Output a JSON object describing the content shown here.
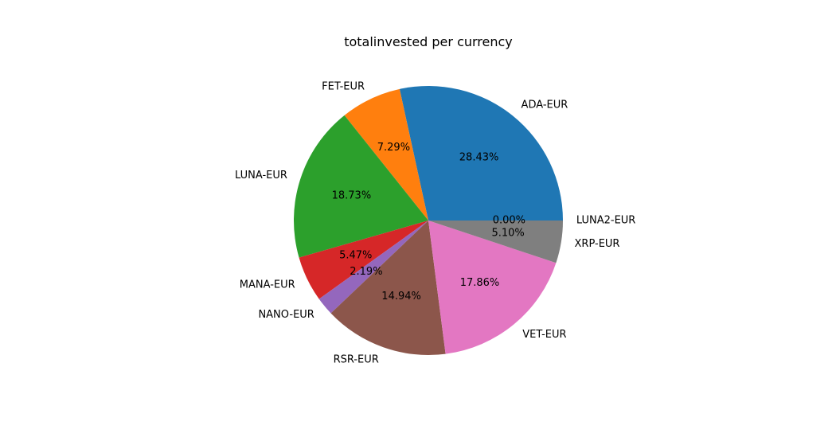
{
  "chart_data": {
    "type": "pie",
    "title": "totalinvested per currency",
    "categories": [
      "ADA-EUR",
      "FET-EUR",
      "LUNA-EUR",
      "MANA-EUR",
      "NANO-EUR",
      "RSR-EUR",
      "VET-EUR",
      "XRP-EUR",
      "LUNA2-EUR"
    ],
    "values": [
      28.43,
      7.29,
      18.73,
      5.47,
      2.19,
      14.94,
      17.86,
      5.1,
      0.0
    ],
    "value_labels": [
      "28.43%",
      "7.29%",
      "18.73%",
      "5.47%",
      "2.19%",
      "14.94%",
      "17.86%",
      "5.10%",
      "0.00%"
    ],
    "colors": [
      "#1f77b4",
      "#ff7f0e",
      "#2ca02c",
      "#d62728",
      "#9467bd",
      "#8c564b",
      "#e377c2",
      "#7f7f7f",
      "#bcbd22"
    ],
    "start_angle_deg": 0,
    "direction": "counterclockwise",
    "legend": "none",
    "grid": false
  }
}
